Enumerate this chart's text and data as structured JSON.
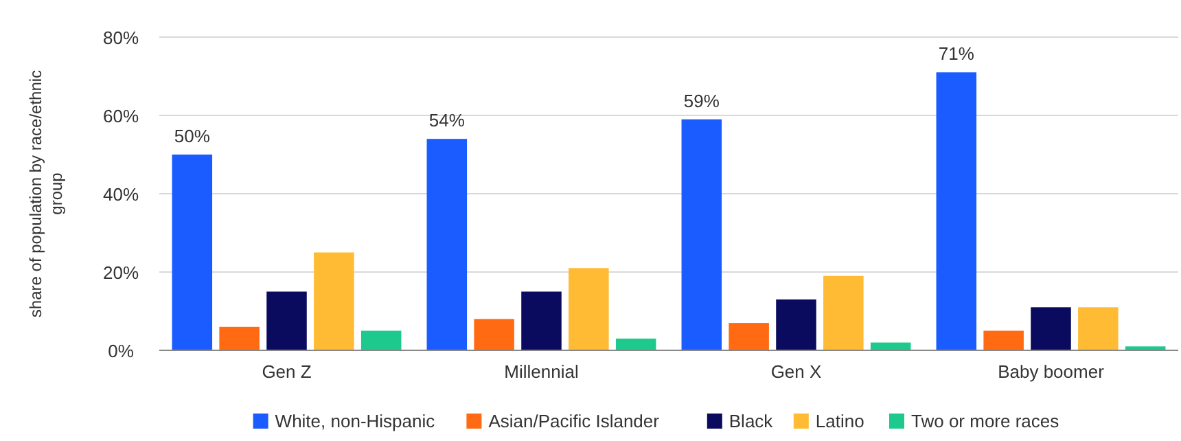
{
  "chart_data": {
    "type": "bar",
    "ylabel": "share of population by race/ethnic group",
    "categories": [
      "Gen Z",
      "Millennial",
      "Gen X",
      "Baby boomer"
    ],
    "series": [
      {
        "name": "White, non-Hispanic",
        "color": "#1a5cff",
        "values": [
          50,
          54,
          59,
          71
        ],
        "value_labels": [
          "50%",
          "54%",
          "59%",
          "71%"
        ]
      },
      {
        "name": "Asian/Pacific Islander",
        "color": "#ff6a13",
        "values": [
          6,
          8,
          7,
          5
        ]
      },
      {
        "name": "Black",
        "color": "#0a0a5e",
        "values": [
          15,
          15,
          13,
          11
        ]
      },
      {
        "name": "Latino",
        "color": "#ffbb33",
        "values": [
          25,
          21,
          19,
          11
        ]
      },
      {
        "name": "Two or more races",
        "color": "#1ec98d",
        "values": [
          5,
          3,
          2,
          1
        ]
      }
    ],
    "ylim": [
      0,
      80
    ],
    "yticks": [
      {
        "value": 0,
        "label": "0%"
      },
      {
        "value": 20,
        "label": "20%"
      },
      {
        "value": 40,
        "label": "40%"
      },
      {
        "value": 60,
        "label": "60%"
      },
      {
        "value": 80,
        "label": "80%"
      }
    ],
    "grid": "y",
    "legend": "bottom"
  }
}
